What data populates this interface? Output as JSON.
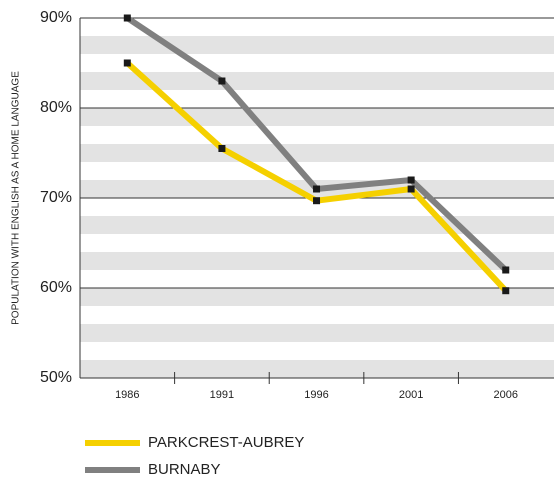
{
  "chart_data": {
    "type": "line",
    "y_label": "POPULATION WITH ENGLISH AS A HOME LANGUAGE",
    "categories": [
      "1986",
      "1991",
      "1996",
      "2001",
      "2006"
    ],
    "series": [
      {
        "name": "PARKCREST-AUBREY",
        "color": "#f5d000",
        "values": [
          85,
          75.5,
          69.7,
          71,
          59.7
        ]
      },
      {
        "name": "BURNABY",
        "color": "#808080",
        "values": [
          90,
          83,
          71,
          72,
          62
        ]
      }
    ],
    "ylim": [
      50,
      90
    ],
    "yticks": [
      {
        "value": 50,
        "label": "50%"
      },
      {
        "value": 60,
        "label": "60%"
      },
      {
        "value": 70,
        "label": "70%"
      },
      {
        "value": 80,
        "label": "80%"
      },
      {
        "value": 90,
        "label": "90%"
      }
    ],
    "grid": true,
    "marker_color": "#1a1a1a"
  }
}
